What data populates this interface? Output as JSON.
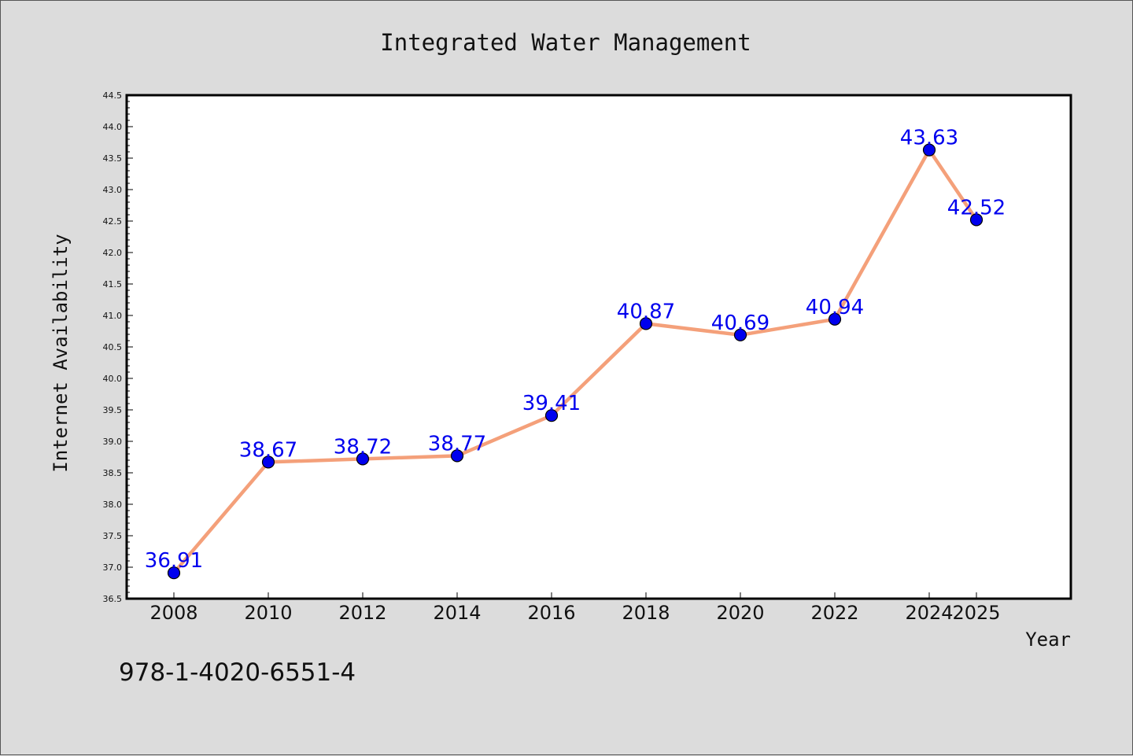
{
  "footer_text": "978-1-4020-6551-4",
  "chart_data": {
    "type": "line",
    "title": "Integrated Water Management",
    "xlabel": "Year",
    "ylabel": "Internet Availability",
    "x": [
      2008,
      2010,
      2012,
      2014,
      2016,
      2018,
      2020,
      2022,
      2024,
      2025
    ],
    "x_tick_labels": [
      "2008",
      "2010",
      "2012",
      "2014",
      "2016",
      "2018",
      "2020",
      "2022",
      "2024",
      "2025"
    ],
    "series": [
      {
        "values": [
          36.91,
          38.67,
          38.72,
          38.77,
          39.41,
          40.87,
          40.69,
          40.94,
          43.63,
          42.52
        ],
        "data_labels": [
          "36.91",
          "38.67",
          "38.72",
          "38.77",
          "39.41",
          "40.87",
          "40.69",
          "40.94",
          "43.63",
          "42.52"
        ],
        "line_color": "#f4a07a",
        "marker_color": "#0000ee"
      }
    ],
    "ylim": [
      36.5,
      44.5
    ],
    "y_tick_labels": [
      "36.5",
      "37.0",
      "37.5",
      "38.0",
      "38.5",
      "39.0",
      "39.5",
      "40.0",
      "40.5",
      "41.0",
      "41.5",
      "42.0",
      "42.5",
      "43.0",
      "43.5",
      "44.0",
      "44.5"
    ],
    "grid": false,
    "legend": "none",
    "background_color": "#dcdcdc",
    "plot_background_color": "#ffffff",
    "label_color": "#0000ee"
  }
}
